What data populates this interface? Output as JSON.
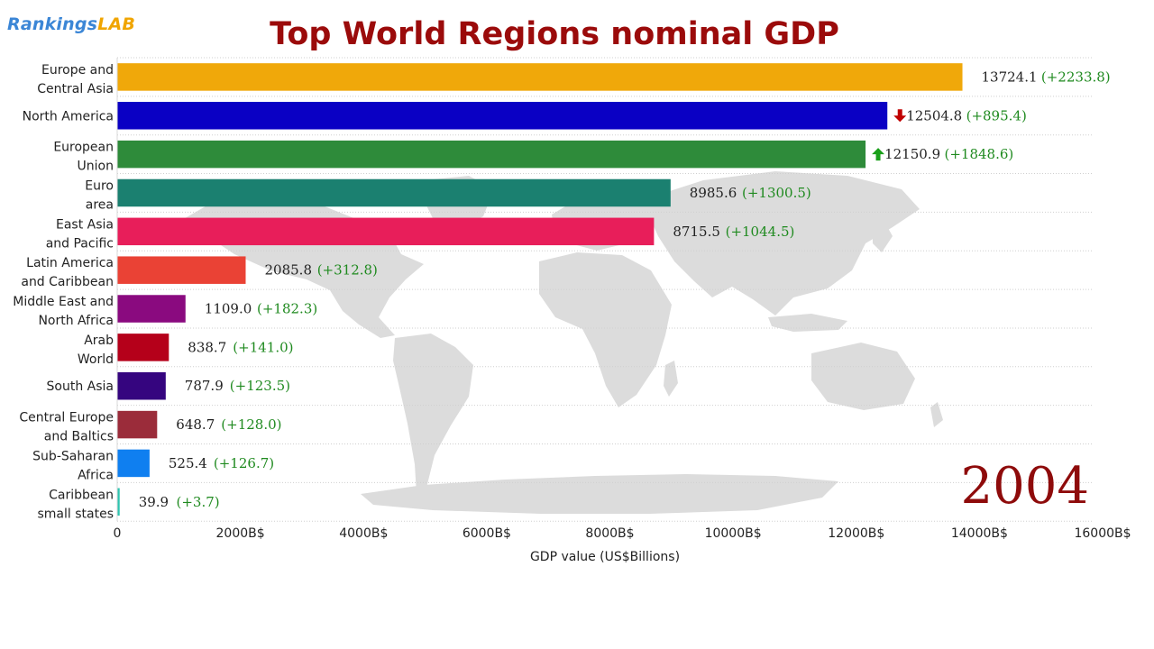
{
  "logo": {
    "part1": "Rankings",
    "part2": "LAB"
  },
  "chart_data": {
    "type": "bar",
    "orientation": "horizontal",
    "title": "Top World Regions nominal GDP",
    "year": "2004",
    "xlabel": "GDP value (US$Billions)",
    "xlim": [
      0,
      16000
    ],
    "xticks": [
      0,
      2000,
      4000,
      6000,
      8000,
      10000,
      12000,
      14000,
      16000
    ],
    "xtick_labels": [
      "0",
      "2000B$",
      "4000B$",
      "6000B$",
      "8000B$",
      "10000B$",
      "12000B$",
      "14000B$",
      "16000B$"
    ],
    "grid": "horizontal dotted",
    "background": "world map",
    "bars": [
      {
        "label": [
          "Europe and",
          "Central Asia"
        ],
        "value": 13724.1,
        "value_text": "13724.1",
        "change_text": "(+2233.8)",
        "color": "#f0a80a",
        "arrow": ""
      },
      {
        "label": [
          "North America"
        ],
        "value": 12504.8,
        "value_text": "12504.8",
        "change_text": "(+895.4)",
        "color": "#0a00c4",
        "arrow": "down"
      },
      {
        "label": [
          "European",
          "Union"
        ],
        "value": 12150.9,
        "value_text": "12150.9",
        "change_text": "(+1848.6)",
        "color": "#2e8b3a",
        "arrow": "up"
      },
      {
        "label": [
          "Euro",
          "area"
        ],
        "value": 8985.6,
        "value_text": "8985.6",
        "change_text": "(+1300.5)",
        "color": "#1b8070",
        "arrow": ""
      },
      {
        "label": [
          "East Asia",
          "and Pacific"
        ],
        "value": 8715.5,
        "value_text": "8715.5",
        "change_text": "(+1044.5)",
        "color": "#e81e5a",
        "arrow": ""
      },
      {
        "label": [
          "Latin America",
          "and Caribbean"
        ],
        "value": 2085.8,
        "value_text": "2085.8",
        "change_text": "(+312.8)",
        "color": "#ea4235",
        "arrow": ""
      },
      {
        "label": [
          "Middle East and",
          "North Africa"
        ],
        "value": 1109.0,
        "value_text": "1109.0",
        "change_text": "(+182.3)",
        "color": "#8a0a7f",
        "arrow": ""
      },
      {
        "label": [
          "Arab",
          "World"
        ],
        "value": 838.7,
        "value_text": "838.7",
        "change_text": "(+141.0)",
        "color": "#b5001a",
        "arrow": ""
      },
      {
        "label": [
          "South Asia"
        ],
        "value": 787.9,
        "value_text": "787.9",
        "change_text": "(+123.5)",
        "color": "#35057f",
        "arrow": ""
      },
      {
        "label": [
          "Central Europe",
          "and Baltics"
        ],
        "value": 648.7,
        "value_text": "648.7",
        "change_text": "(+128.0)",
        "color": "#9b2c3a",
        "arrow": ""
      },
      {
        "label": [
          "Sub-Saharan",
          "Africa"
        ],
        "value": 525.4,
        "value_text": "525.4",
        "change_text": "(+126.7)",
        "color": "#0f7ff0",
        "arrow": ""
      },
      {
        "label": [
          "Caribbean",
          "small states"
        ],
        "value": 39.9,
        "value_text": "39.9",
        "change_text": "(+3.7)",
        "color": "#2ec4b0",
        "arrow": ""
      }
    ]
  }
}
